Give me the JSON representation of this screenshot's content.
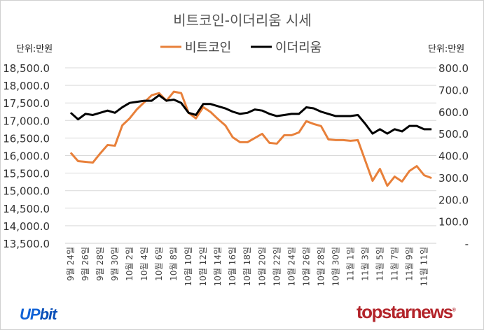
{
  "chart_data": {
    "type": "line",
    "title": "비트코인-이더리움 시세",
    "left_unit": "단위:만원",
    "right_unit": "단위:만원",
    "legend_position": "top",
    "grid": true,
    "categories": [
      "9월 24일",
      "9월 25일",
      "9월 26일",
      "9월 27일",
      "9월 28일",
      "9월 29일",
      "9월 30일",
      "10월 1일",
      "10월 2일",
      "10월 3일",
      "10월 4일",
      "10월 5일",
      "10월 6일",
      "10월 7일",
      "10월 8일",
      "10월 9일",
      "10월 10일",
      "10월 11일",
      "10월 12일",
      "10월 13일",
      "10월 14일",
      "10월 15일",
      "10월 16일",
      "10월 17일",
      "10월 18일",
      "10월 19일",
      "10월 20일",
      "10월 21일",
      "10월 22일",
      "10월 23일",
      "10월 24일",
      "10월 25일",
      "10월 26일",
      "10월 27일",
      "10월 28일",
      "10월 29일",
      "10월 30일",
      "10월 31일",
      "11월 1일",
      "11월 2일",
      "11월 3일",
      "11월 4일",
      "11월 5일",
      "11월 6일",
      "11월 7일",
      "11월 8일",
      "11월 9일",
      "11월 10일",
      "11월 11일",
      "11월 12일"
    ],
    "y_left": {
      "range": [
        13500,
        18500
      ],
      "ticks": [
        "13,500.0",
        "14,000.0",
        "14,500.0",
        "15,000.0",
        "15,500.0",
        "16,000.0",
        "16,500.0",
        "17,000.0",
        "17,500.0",
        "18,000.0",
        "18,500.0"
      ]
    },
    "y_right": {
      "range": [
        0,
        800
      ],
      "ticks": [
        "-",
        "100.0",
        "200.0",
        "300.0",
        "400.0",
        "500.0",
        "600.0",
        "700.0",
        "800.0"
      ]
    },
    "series": [
      {
        "name": "비트코인",
        "axis": "left",
        "color": "#e8803a",
        "values": [
          16080,
          15840,
          15820,
          15800,
          16060,
          16300,
          16280,
          16860,
          17060,
          17320,
          17520,
          17720,
          17780,
          17560,
          17820,
          17780,
          17220,
          17060,
          17380,
          17240,
          17040,
          16860,
          16520,
          16380,
          16380,
          16500,
          16620,
          16360,
          16340,
          16580,
          16580,
          16660,
          16980,
          16900,
          16840,
          16460,
          16440,
          16440,
          16420,
          16440,
          15860,
          15280,
          15620,
          15140,
          15400,
          15260,
          15560,
          15700,
          15440,
          15360
        ]
      },
      {
        "name": "이더리움",
        "axis": "right",
        "color": "#000000",
        "values": [
          595,
          565,
          590,
          585,
          595,
          605,
          595,
          620,
          640,
          645,
          650,
          650,
          675,
          650,
          655,
          640,
          595,
          585,
          635,
          635,
          625,
          615,
          600,
          590,
          595,
          610,
          605,
          590,
          580,
          585,
          590,
          590,
          620,
          615,
          600,
          590,
          580,
          580,
          580,
          585,
          545,
          500,
          520,
          500,
          520,
          510,
          535,
          535,
          520,
          520
        ]
      }
    ]
  },
  "logos": {
    "left": "UPbit",
    "right": "topstarnews"
  }
}
